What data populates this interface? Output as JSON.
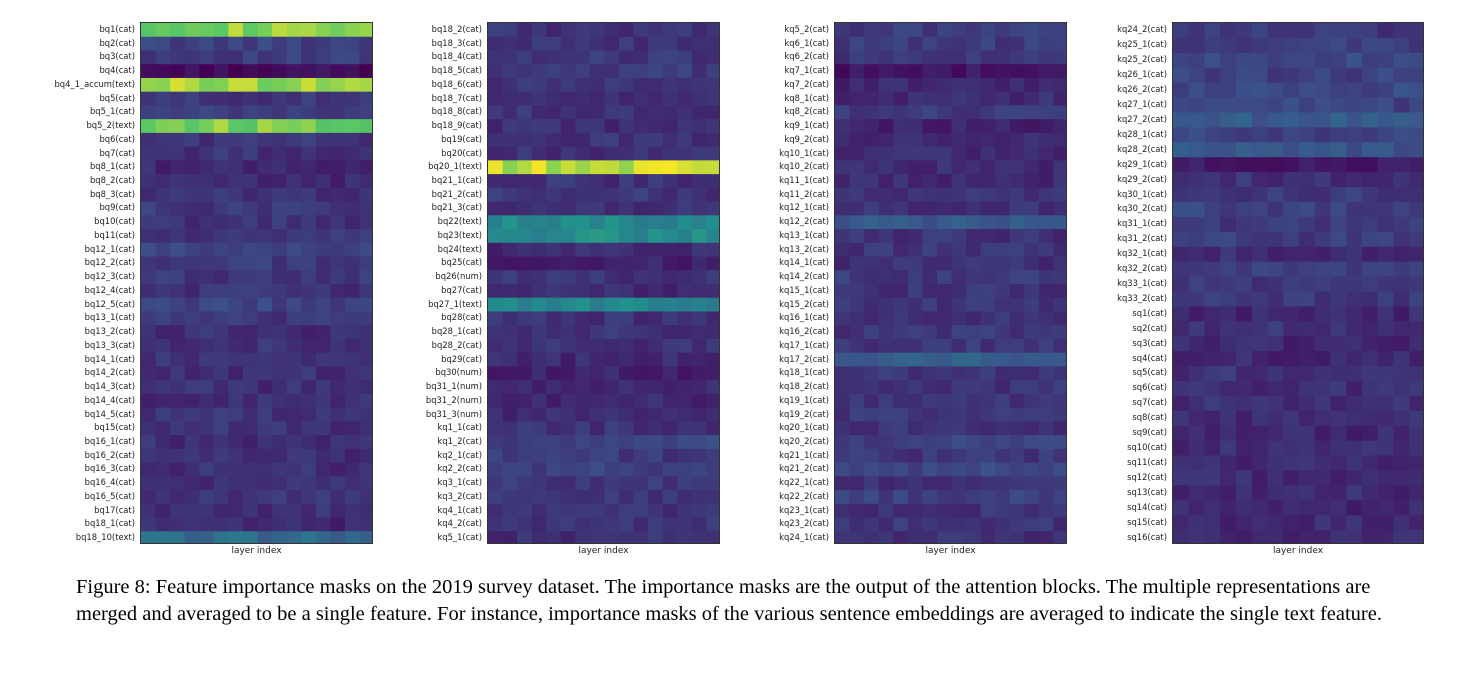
{
  "caption": "Figure 8: Feature importance masks on the 2019 survey dataset. The importance masks are the output of the attention blocks. The multiple representations are merged and averaged to be a single feature. For instance, importance masks of the various sentence embeddings are averaged to indicate the single text feature.",
  "colormap": [
    "#440154",
    "#3b528b",
    "#21908d",
    "#5dc963",
    "#fde725"
  ],
  "chart_data": [
    {
      "type": "heatmap",
      "xlabel": "layer index",
      "columns": 16,
      "rows": [
        "bq1(cat)",
        "bq2(cat)",
        "bq3(cat)",
        "bq4(cat)",
        "bq4_1_accum(text)",
        "bq5(cat)",
        "bq5_1(cat)",
        "bq5_2(text)",
        "bq6(cat)",
        "bq7(cat)",
        "bq8_1(cat)",
        "bq8_2(cat)",
        "bq8_3(cat)",
        "bq9(cat)",
        "bq10(cat)",
        "bq11(cat)",
        "bq12_1(cat)",
        "bq12_2(cat)",
        "bq12_3(cat)",
        "bq12_4(cat)",
        "bq12_5(cat)",
        "bq13_1(cat)",
        "bq13_2(cat)",
        "bq13_3(cat)",
        "bq14_1(cat)",
        "bq14_2(cat)",
        "bq14_3(cat)",
        "bq14_4(cat)",
        "bq14_5(cat)",
        "bq15(cat)",
        "bq16_1(cat)",
        "bq16_2(cat)",
        "bq16_3(cat)",
        "bq16_4(cat)",
        "bq16_5(cat)",
        "bq17(cat)",
        "bq18_1(cat)",
        "bq18_10(text)"
      ],
      "row_levels": [
        0.82,
        0.2,
        0.18,
        0.03,
        0.86,
        0.16,
        0.18,
        0.8,
        0.16,
        0.15,
        0.12,
        0.12,
        0.15,
        0.17,
        0.15,
        0.15,
        0.2,
        0.17,
        0.16,
        0.15,
        0.2,
        0.17,
        0.14,
        0.15,
        0.15,
        0.14,
        0.14,
        0.14,
        0.15,
        0.15,
        0.14,
        0.14,
        0.14,
        0.15,
        0.15,
        0.14,
        0.12,
        0.34
      ]
    },
    {
      "type": "heatmap",
      "xlabel": "layer index",
      "columns": 16,
      "rows": [
        "bq18_2(cat)",
        "bq18_3(cat)",
        "bq18_4(cat)",
        "bq18_5(cat)",
        "bq18_6(cat)",
        "bq18_7(cat)",
        "bq18_8(cat)",
        "bq18_9(cat)",
        "bq19(cat)",
        "bq20(cat)",
        "bq20_1(text)",
        "bq21_1(cat)",
        "bq21_2(cat)",
        "bq21_3(cat)",
        "bq22(text)",
        "bq23(text)",
        "bq24(text)",
        "bq25(cat)",
        "bq26(num)",
        "bq27(cat)",
        "bq27_1(text)",
        "bq28(cat)",
        "bq28_1(cat)",
        "bq28_2(cat)",
        "bq29(cat)",
        "bq30(num)",
        "bq31_1(num)",
        "bq31_2(num)",
        "bq31_3(num)",
        "kq1_1(cat)",
        "kq1_2(cat)",
        "kq2_1(cat)",
        "kq2_2(cat)",
        "kq3_1(cat)",
        "kq3_2(cat)",
        "kq4_1(cat)",
        "kq4_2(cat)",
        "kq5_1(cat)"
      ],
      "row_levels": [
        0.15,
        0.15,
        0.16,
        0.17,
        0.16,
        0.15,
        0.15,
        0.14,
        0.15,
        0.14,
        0.9,
        0.15,
        0.16,
        0.15,
        0.46,
        0.48,
        0.13,
        0.1,
        0.15,
        0.13,
        0.46,
        0.15,
        0.15,
        0.15,
        0.12,
        0.1,
        0.12,
        0.12,
        0.12,
        0.15,
        0.2,
        0.17,
        0.2,
        0.16,
        0.15,
        0.14,
        0.15,
        0.14
      ]
    },
    {
      "type": "heatmap",
      "xlabel": "layer index",
      "columns": 16,
      "rows": [
        "kq5_2(cat)",
        "kq6_1(cat)",
        "kq6_2(cat)",
        "kq7_1(cat)",
        "kq7_2(cat)",
        "kq8_1(cat)",
        "kq8_2(cat)",
        "kq9_1(cat)",
        "kq9_2(cat)",
        "kq10_1(cat)",
        "kq10_2(cat)",
        "kq11_1(cat)",
        "kq11_2(cat)",
        "kq12_1(cat)",
        "kq12_2(cat)",
        "kq13_1(cat)",
        "kq13_2(cat)",
        "kq14_1(cat)",
        "kq14_2(cat)",
        "kq15_1(cat)",
        "kq15_2(cat)",
        "kq16_1(cat)",
        "kq16_2(cat)",
        "kq17_1(cat)",
        "kq17_2(cat)",
        "kq18_1(cat)",
        "kq18_2(cat)",
        "kq19_1(cat)",
        "kq19_2(cat)",
        "kq20_1(cat)",
        "kq20_2(cat)",
        "kq21_1(cat)",
        "kq21_2(cat)",
        "kq22_1(cat)",
        "kq22_2(cat)",
        "kq23_1(cat)",
        "kq23_2(cat)",
        "kq24_1(cat)"
      ],
      "row_levels": [
        0.18,
        0.18,
        0.17,
        0.06,
        0.12,
        0.13,
        0.17,
        0.1,
        0.14,
        0.13,
        0.13,
        0.13,
        0.15,
        0.15,
        0.27,
        0.15,
        0.16,
        0.14,
        0.17,
        0.15,
        0.16,
        0.14,
        0.16,
        0.16,
        0.3,
        0.15,
        0.16,
        0.16,
        0.16,
        0.15,
        0.2,
        0.16,
        0.22,
        0.14,
        0.2,
        0.15,
        0.16,
        0.14
      ]
    },
    {
      "type": "heatmap",
      "xlabel": "layer index",
      "columns": 16,
      "rows": [
        "kq24_2(cat)",
        "kq25_1(cat)",
        "kq25_2(cat)",
        "kq26_1(cat)",
        "kq26_2(cat)",
        "kq27_1(cat)",
        "kq27_2(cat)",
        "kq28_1(cat)",
        "kq28_2(cat)",
        "kq29_1(cat)",
        "kq29_2(cat)",
        "kq30_1(cat)",
        "kq30_2(cat)",
        "kq31_1(cat)",
        "kq31_2(cat)",
        "kq32_1(cat)",
        "kq32_2(cat)",
        "kq33_1(cat)",
        "kq33_2(cat)",
        "sq1(cat)",
        "sq2(cat)",
        "sq3(cat)",
        "sq4(cat)",
        "sq5(cat)",
        "sq6(cat)",
        "sq7(cat)",
        "sq8(cat)",
        "sq9(cat)",
        "sq10(cat)",
        "sq11(cat)",
        "sq12(cat)",
        "sq13(cat)",
        "sq14(cat)",
        "sq15(cat)",
        "sq16(cat)"
      ],
      "row_levels": [
        0.17,
        0.18,
        0.22,
        0.2,
        0.22,
        0.2,
        0.28,
        0.2,
        0.26,
        0.07,
        0.15,
        0.17,
        0.2,
        0.17,
        0.18,
        0.13,
        0.18,
        0.17,
        0.17,
        0.12,
        0.15,
        0.12,
        0.12,
        0.15,
        0.14,
        0.14,
        0.13,
        0.12,
        0.13,
        0.13,
        0.13,
        0.13,
        0.12,
        0.13,
        0.13
      ]
    }
  ]
}
